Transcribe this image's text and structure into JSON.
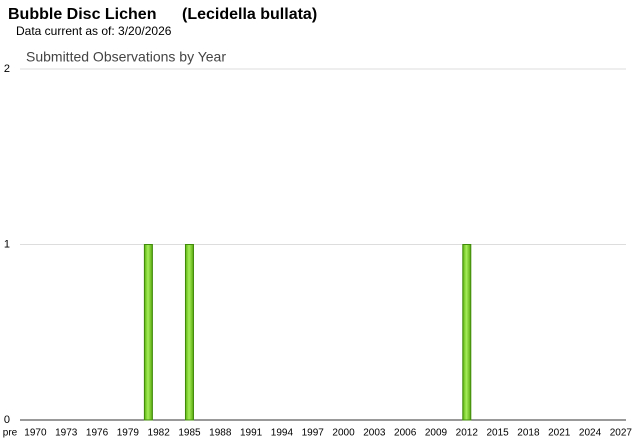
{
  "header": {
    "title": "Bubble Disc Lichen",
    "scientific_name": "(Lecidella bullata)",
    "subtitle": "Data current as of: 3/20/2026"
  },
  "chart_data": {
    "type": "bar",
    "title": "Submitted Observations by Year",
    "categories": [
      "pre",
      "1970",
      null,
      null,
      "1973",
      null,
      null,
      "1976",
      null,
      null,
      "1979",
      null,
      null,
      "1982",
      null,
      null,
      "1985",
      null,
      null,
      "1988",
      null,
      null,
      "1991",
      null,
      null,
      "1994",
      null,
      null,
      "1997",
      null,
      null,
      "2000",
      null,
      null,
      "2003",
      null,
      null,
      "2006",
      null,
      null,
      "2009",
      null,
      null,
      "2012",
      null,
      null,
      "2015",
      null,
      null,
      "2018",
      null,
      null,
      "2021",
      null,
      null,
      "2024",
      null,
      null,
      "2027"
    ],
    "values": [
      0,
      0,
      0,
      0,
      0,
      0,
      0,
      0,
      0,
      0,
      0,
      0,
      1,
      0,
      0,
      0,
      1,
      0,
      0,
      0,
      0,
      0,
      0,
      0,
      0,
      0,
      0,
      0,
      0,
      0,
      0,
      0,
      0,
      0,
      0,
      0,
      0,
      0,
      0,
      0,
      0,
      0,
      0,
      1,
      0,
      0,
      0,
      0,
      0,
      0,
      0,
      0,
      0,
      0,
      0,
      0,
      0,
      0,
      0
    ],
    "color": "#7ed321",
    "ylim": [
      0,
      2
    ],
    "yticks": [
      0,
      1,
      2
    ],
    "grid": true
  }
}
